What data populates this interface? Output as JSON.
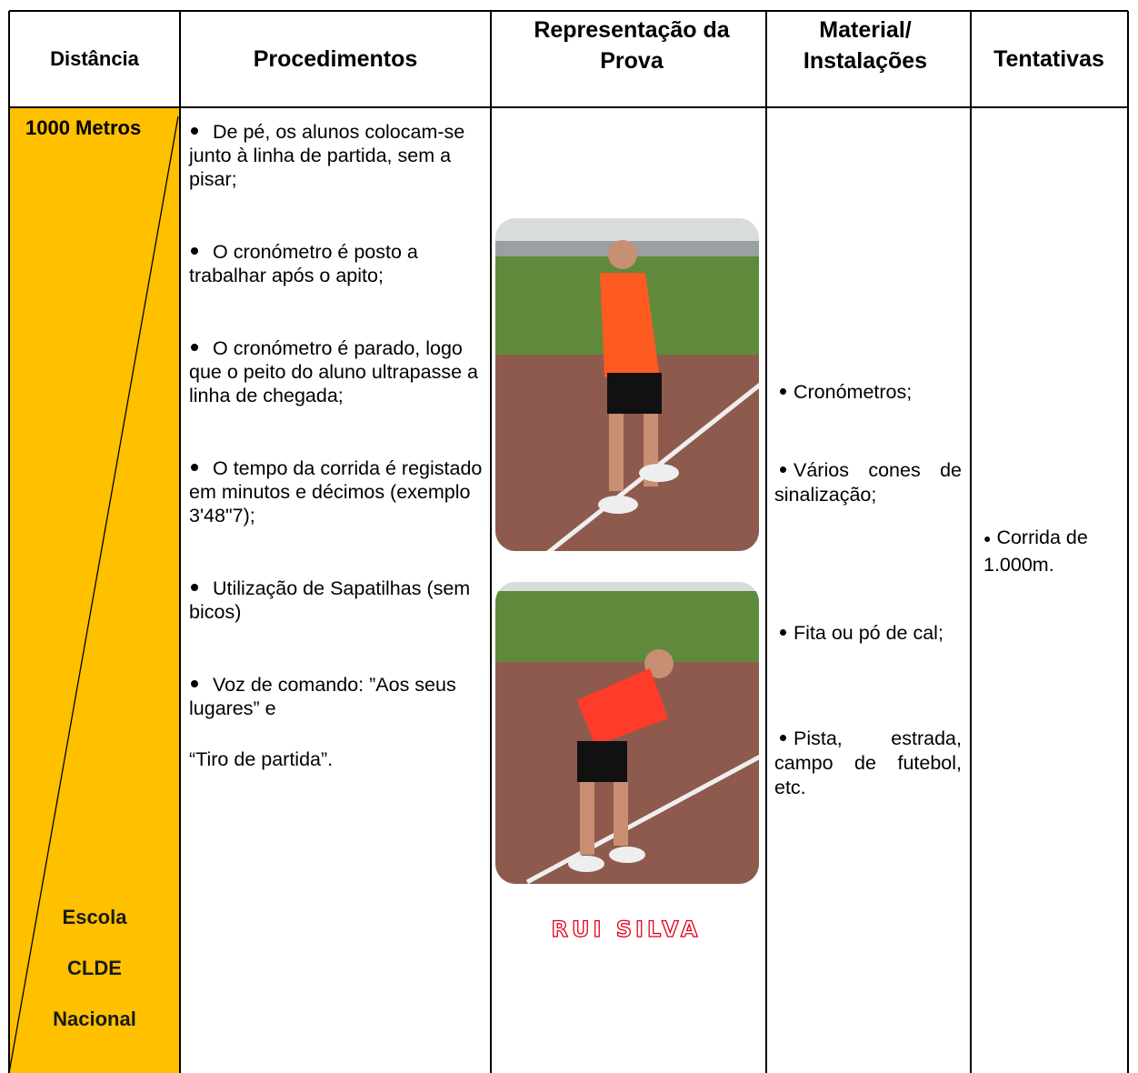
{
  "table": {
    "header": [
      "Distância",
      "Procedimentos",
      "Representação da Prova",
      "Material/ Instalações",
      "Tentativas"
    ],
    "row": {
      "distance": "1000 Metros",
      "levels": [
        "Escola",
        "CLDE",
        "Nacional"
      ],
      "procedures": [
        "De pé, os alunos colocam-se junto à linha de partida, sem a pisar;",
        "O cronómetro é posto a trabalhar após o apito;",
        "O cronómetro é parado, logo que o peito do aluno ultrapasse a linha de chegada;",
        "O tempo da corrida é registado em minutos e décimos (exemplo 3'48\"7);",
        "Utilização de Sapatilhas (sem bicos)",
        "Voz de comando: ”Aos seus lugares” e"
      ],
      "procedures_note": "“Tiro de partida”.",
      "photo_caption": "RUI SILVA",
      "materials": [
        "Cronómetros;",
        "Vários cones de sinalização;",
        "Fita ou pó de cal;",
        "Pista, estrada, campo de futebol, etc."
      ],
      "attempts": "Corrida de 1.000m."
    }
  }
}
